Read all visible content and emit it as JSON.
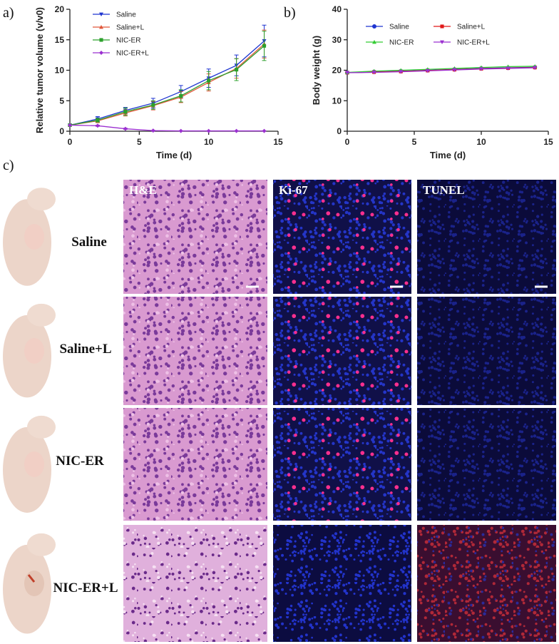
{
  "panel_labels": [
    "a)",
    "b)",
    "c)"
  ],
  "chart_data": [
    {
      "type": "line",
      "xlabel": "Time (d)",
      "ylabel": "Relative tumor volume (v/v0)",
      "x": [
        0,
        2,
        4,
        6,
        8,
        10,
        12,
        14
      ],
      "xlim": [
        0,
        15
      ],
      "xticks": [
        0,
        5,
        10,
        15
      ],
      "ylim": [
        0,
        20
      ],
      "yticks": [
        0,
        5,
        10,
        15,
        20
      ],
      "legend": "upper left",
      "legend_columns": 1,
      "series": [
        {
          "name": "Saline",
          "color": "#1f35d0",
          "marker": "triangle-down",
          "values": [
            1,
            2.0,
            3.4,
            4.6,
            6.5,
            8.7,
            10.8,
            14.8
          ],
          "errors": [
            0,
            0.4,
            0.5,
            0.8,
            1.0,
            1.5,
            1.7,
            2.6
          ]
        },
        {
          "name": "Saline+L",
          "color": "#e0573a",
          "marker": "triangle-up",
          "values": [
            1,
            1.7,
            3.0,
            4.2,
            5.6,
            8.0,
            10.3,
            14.3
          ],
          "errors": [
            0,
            0.3,
            0.5,
            0.7,
            0.9,
            1.4,
            1.6,
            2.3
          ]
        },
        {
          "name": "NIC-ER",
          "color": "#2ca02c",
          "marker": "square",
          "values": [
            1,
            1.8,
            3.2,
            4.3,
            5.8,
            8.3,
            10.1,
            14.0
          ],
          "errors": [
            0,
            0.3,
            0.6,
            0.7,
            1.0,
            1.5,
            1.8,
            2.4
          ]
        },
        {
          "name": "NIC-ER+L",
          "color": "#9b30d0",
          "marker": "diamond",
          "values": [
            1,
            0.9,
            0.4,
            0.1,
            0.05,
            0.05,
            0.05,
            0.05
          ],
          "errors": [
            0,
            0.1,
            0.1,
            0.05,
            0.02,
            0.02,
            0.02,
            0.02
          ]
        }
      ]
    },
    {
      "type": "line",
      "xlabel": "Time (d)",
      "ylabel": "Body weight (g)",
      "x": [
        0,
        2,
        4,
        6,
        8,
        10,
        12,
        14
      ],
      "xlim": [
        0,
        15
      ],
      "xticks": [
        0,
        5,
        10,
        15
      ],
      "ylim": [
        0,
        40
      ],
      "yticks": [
        0,
        10,
        20,
        30,
        40
      ],
      "legend": "upper center",
      "legend_columns": 2,
      "series": [
        {
          "name": "Saline",
          "color": "#1f35d0",
          "marker": "circle",
          "values": [
            19.2,
            19.5,
            19.7,
            20.0,
            20.3,
            20.6,
            20.8,
            21.0
          ]
        },
        {
          "name": "Saline+L",
          "color": "#e01818",
          "marker": "square",
          "values": [
            19.2,
            19.4,
            19.6,
            19.9,
            20.2,
            20.5,
            20.7,
            20.9
          ]
        },
        {
          "name": "NIC-ER",
          "color": "#33cc33",
          "marker": "triangle-up",
          "values": [
            19.3,
            19.7,
            20.0,
            20.3,
            20.6,
            20.9,
            21.2,
            21.3
          ]
        },
        {
          "name": "NIC-ER+L",
          "color": "#9b30d0",
          "marker": "triangle-down",
          "values": [
            19.2,
            19.3,
            19.5,
            19.8,
            20.1,
            20.4,
            20.6,
            20.8
          ]
        }
      ]
    }
  ],
  "micrographs": {
    "columns": [
      "H&E",
      "Ki-67",
      "TUNEL"
    ],
    "rows": [
      "Saline",
      "Saline+L",
      "NIC-ER",
      "NIC-ER+L"
    ]
  }
}
